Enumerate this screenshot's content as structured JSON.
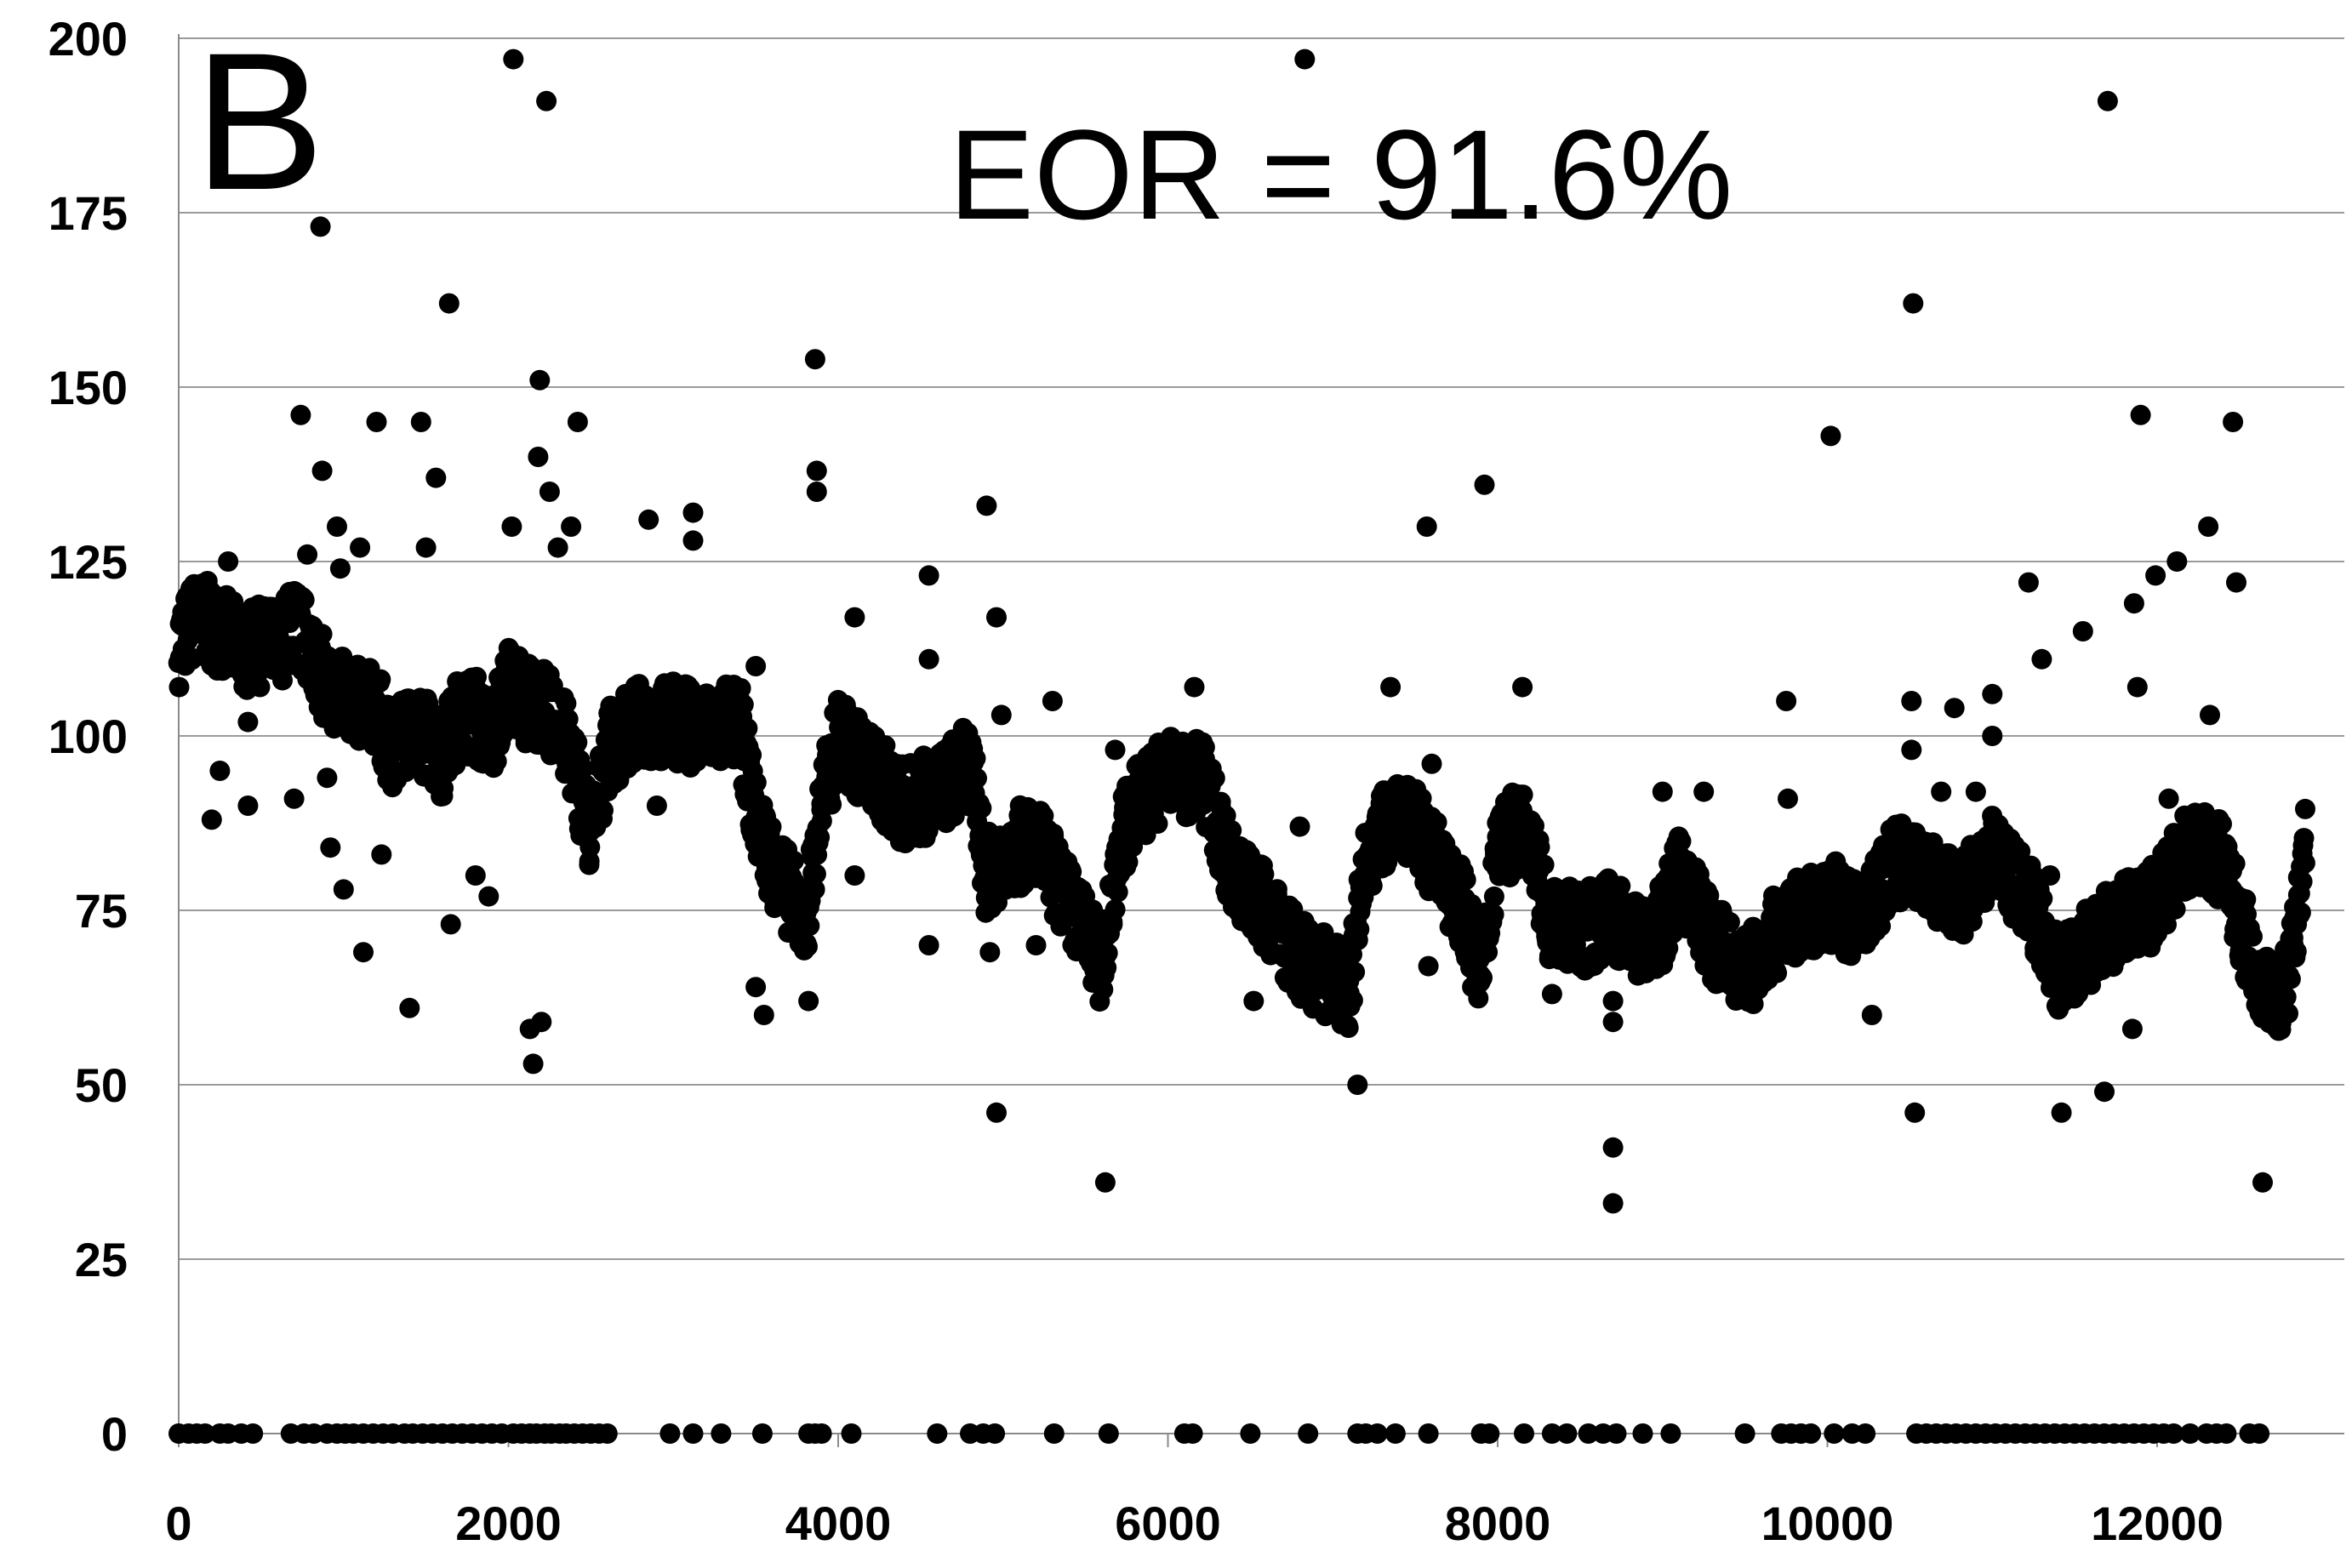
{
  "chart_data": {
    "type": "scatter",
    "panel_label": "B",
    "annotation": "EOR = 91.6%",
    "title": "",
    "xlabel": "",
    "ylabel": "",
    "xlim": [
      0,
      13000
    ],
    "ylim": [
      0,
      200
    ],
    "x_ticks": [
      0,
      2000,
      4000,
      6000,
      8000,
      10000,
      12000
    ],
    "y_ticks": [
      0,
      25,
      50,
      75,
      100,
      125,
      150,
      175,
      200
    ],
    "x_tick_labels": [
      "0",
      "2000",
      "4000",
      "6000",
      "8000",
      "10000",
      "12000"
    ],
    "y_tick_labels": [
      "0",
      "25",
      "50",
      "75",
      "100",
      "125",
      "150",
      "175",
      "200"
    ],
    "grid": "horizontal",
    "legend": "none",
    "marker_color": "#000000",
    "trend": [
      [
        0,
        113
      ],
      [
        100,
        117
      ],
      [
        200,
        116
      ],
      [
        300,
        114
      ],
      [
        400,
        112
      ],
      [
        500,
        113
      ],
      [
        600,
        113
      ],
      [
        700,
        116
      ],
      [
        800,
        113
      ],
      [
        900,
        107
      ],
      [
        1000,
        106
      ],
      [
        1100,
        104
      ],
      [
        1200,
        104
      ],
      [
        1300,
        97
      ],
      [
        1400,
        101
      ],
      [
        1500,
        100
      ],
      [
        1600,
        97
      ],
      [
        1700,
        103
      ],
      [
        1800,
        103
      ],
      [
        1900,
        99
      ],
      [
        2000,
        108
      ],
      [
        2100,
        105
      ],
      [
        2200,
        104
      ],
      [
        2300,
        102
      ],
      [
        2400,
        96
      ],
      [
        2500,
        85
      ],
      [
        2600,
        98
      ],
      [
        2800,
        102
      ],
      [
        3000,
        102
      ],
      [
        3200,
        101
      ],
      [
        3400,
        102
      ],
      [
        3500,
        88
      ],
      [
        3600,
        82
      ],
      [
        3800,
        73
      ],
      [
        3900,
        90
      ],
      [
        4000,
        100
      ],
      [
        4200,
        95
      ],
      [
        4400,
        90
      ],
      [
        4600,
        92
      ],
      [
        4800,
        96
      ],
      [
        4900,
        80
      ],
      [
        5000,
        83
      ],
      [
        5200,
        85
      ],
      [
        5400,
        76
      ],
      [
        5600,
        67
      ],
      [
        5700,
        84
      ],
      [
        5800,
        90
      ],
      [
        6000,
        95
      ],
      [
        6100,
        93
      ],
      [
        6200,
        95
      ],
      [
        6400,
        80
      ],
      [
        6600,
        75
      ],
      [
        6800,
        68
      ],
      [
        7000,
        65
      ],
      [
        7100,
        63
      ],
      [
        7200,
        82
      ],
      [
        7400,
        90
      ],
      [
        7600,
        83
      ],
      [
        7800,
        75
      ],
      [
        7900,
        64
      ],
      [
        8000,
        85
      ],
      [
        8200,
        87
      ],
      [
        8300,
        74
      ],
      [
        8500,
        72
      ],
      [
        8700,
        74
      ],
      [
        8900,
        70
      ],
      [
        9000,
        73
      ],
      [
        9100,
        80
      ],
      [
        9300,
        71
      ],
      [
        9500,
        66
      ],
      [
        9700,
        72
      ],
      [
        9900,
        75
      ],
      [
        10000,
        76
      ],
      [
        10200,
        73
      ],
      [
        10400,
        82
      ],
      [
        10600,
        80
      ],
      [
        10800,
        76
      ],
      [
        11000,
        83
      ],
      [
        11200,
        78
      ],
      [
        11400,
        66
      ],
      [
        11600,
        70
      ],
      [
        11800,
        74
      ],
      [
        12000,
        76
      ],
      [
        12200,
        84
      ],
      [
        12400,
        82
      ],
      [
        12600,
        66
      ],
      [
        12700,
        63
      ],
      [
        12800,
        64
      ],
      [
        12900,
        87
      ]
    ],
    "outliers": [
      [
        200,
        88
      ],
      [
        250,
        95
      ],
      [
        300,
        125
      ],
      [
        420,
        90
      ],
      [
        420,
        102
      ],
      [
        700,
        91
      ],
      [
        740,
        146
      ],
      [
        780,
        126
      ],
      [
        860,
        173
      ],
      [
        870,
        138
      ],
      [
        900,
        94
      ],
      [
        920,
        84
      ],
      [
        960,
        130
      ],
      [
        980,
        124
      ],
      [
        1000,
        78
      ],
      [
        1100,
        127
      ],
      [
        1120,
        69
      ],
      [
        1200,
        145
      ],
      [
        1230,
        83
      ],
      [
        1400,
        61
      ],
      [
        1470,
        145
      ],
      [
        1500,
        127
      ],
      [
        1560,
        137
      ],
      [
        1640,
        162
      ],
      [
        1650,
        73
      ],
      [
        1800,
        80
      ],
      [
        1880,
        77
      ],
      [
        2020,
        130
      ],
      [
        2030,
        197
      ],
      [
        2130,
        58
      ],
      [
        2150,
        53
      ],
      [
        2180,
        140
      ],
      [
        2190,
        151
      ],
      [
        2200,
        59
      ],
      [
        2230,
        191
      ],
      [
        2250,
        135
      ],
      [
        2300,
        127
      ],
      [
        2380,
        130
      ],
      [
        2420,
        145
      ],
      [
        2850,
        131
      ],
      [
        2900,
        90
      ],
      [
        3120,
        132
      ],
      [
        3120,
        128
      ],
      [
        3500,
        110
      ],
      [
        3500,
        64
      ],
      [
        3550,
        60
      ],
      [
        3820,
        62
      ],
      [
        3860,
        154
      ],
      [
        3870,
        138
      ],
      [
        3870,
        135
      ],
      [
        4100,
        117
      ],
      [
        4100,
        80
      ],
      [
        4550,
        123
      ],
      [
        4550,
        111
      ],
      [
        4550,
        70
      ],
      [
        4900,
        133
      ],
      [
        4920,
        69
      ],
      [
        4960,
        117
      ],
      [
        4960,
        46
      ],
      [
        4990,
        103
      ],
      [
        5200,
        70
      ],
      [
        5300,
        105
      ],
      [
        5620,
        36
      ],
      [
        5680,
        98
      ],
      [
        6160,
        107
      ],
      [
        6520,
        62
      ],
      [
        6800,
        87
      ],
      [
        6830,
        197
      ],
      [
        7150,
        50
      ],
      [
        7350,
        107
      ],
      [
        7570,
        130
      ],
      [
        7580,
        67
      ],
      [
        7600,
        96
      ],
      [
        7920,
        136
      ],
      [
        8150,
        107
      ],
      [
        8330,
        63
      ],
      [
        8700,
        59
      ],
      [
        8700,
        62
      ],
      [
        8700,
        41
      ],
      [
        8700,
        33
      ],
      [
        9000,
        92
      ],
      [
        9250,
        92
      ],
      [
        9750,
        105
      ],
      [
        9760,
        91
      ],
      [
        10020,
        143
      ],
      [
        10050,
        82
      ],
      [
        10270,
        60
      ],
      [
        10510,
        105
      ],
      [
        10510,
        98
      ],
      [
        10520,
        162
      ],
      [
        10530,
        46
      ],
      [
        10690,
        92
      ],
      [
        10770,
        104
      ],
      [
        10900,
        92
      ],
      [
        11000,
        106
      ],
      [
        11000,
        100
      ],
      [
        11220,
        122
      ],
      [
        11300,
        111
      ],
      [
        11350,
        80
      ],
      [
        11420,
        46
      ],
      [
        11550,
        115
      ],
      [
        11680,
        49
      ],
      [
        11700,
        191
      ],
      [
        11850,
        58
      ],
      [
        11860,
        119
      ],
      [
        11880,
        107
      ],
      [
        11900,
        146
      ],
      [
        11990,
        123
      ],
      [
        12070,
        91
      ],
      [
        12120,
        125
      ],
      [
        12310,
        130
      ],
      [
        12320,
        103
      ],
      [
        12460,
        145
      ],
      [
        12480,
        122
      ],
      [
        12640,
        36
      ]
    ],
    "zeros": [
      0,
      60,
      110,
      160,
      250,
      300,
      380,
      450,
      680,
      760,
      820,
      900,
      960,
      1010,
      1060,
      1120,
      1180,
      1240,
      1300,
      1370,
      1420,
      1480,
      1540,
      1600,
      1660,
      1720,
      1780,
      1840,
      1900,
      1960,
      2030,
      2080,
      2130,
      2170,
      2220,
      2260,
      2310,
      2350,
      2400,
      2450,
      2500,
      2550,
      2600,
      2980,
      3120,
      3290,
      3540,
      3820,
      3860,
      3900,
      4080,
      4600,
      4800,
      4880,
      4950,
      5310,
      5640,
      6100,
      6150,
      6500,
      6850,
      7150,
      7200,
      7270,
      7380,
      7580,
      7900,
      7950,
      8160,
      8330,
      8420,
      8550,
      8640,
      8720,
      8880,
      9050,
      9500,
      9720,
      9780,
      9840,
      9900,
      10040,
      10150,
      10230,
      10540,
      10600,
      10660,
      10720,
      10780,
      10840,
      10900,
      10960,
      11020,
      11080,
      11140,
      11200,
      11260,
      11320,
      11380,
      11440,
      11500,
      11560,
      11620,
      11680,
      11740,
      11800,
      11860,
      11920,
      11980,
      12040,
      12100,
      12200,
      12300,
      12360,
      12420,
      12560,
      12620
    ]
  }
}
